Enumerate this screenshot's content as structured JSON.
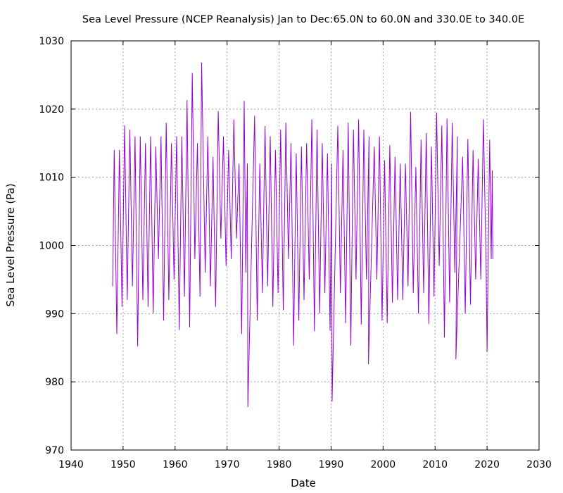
{
  "chart_data": {
    "type": "line",
    "title": "Sea Level Pressure (NCEP Reanalysis) Jan to Dec:65.0N to 60.0N and 330.0E to 340.0E",
    "xlabel": "Date",
    "ylabel": "Sea Level Pressure (Pa)",
    "xlim": [
      1940,
      2030
    ],
    "ylim": [
      970,
      1030
    ],
    "xticks": [
      1940,
      1950,
      1960,
      1970,
      1980,
      1990,
      2000,
      2010,
      2020,
      2030
    ],
    "yticks": [
      970,
      980,
      990,
      1000,
      1010,
      1020,
      1030
    ],
    "grid": true,
    "color": "#9400d3",
    "points": [
      [
        1948.0,
        994
      ],
      [
        1948.3,
        1014
      ],
      [
        1948.8,
        987
      ],
      [
        1949.3,
        1014
      ],
      [
        1949.8,
        991
      ],
      [
        1950.3,
        1017.6
      ],
      [
        1950.8,
        992
      ],
      [
        1951.3,
        1017
      ],
      [
        1951.8,
        994
      ],
      [
        1952.3,
        1016
      ],
      [
        1952.8,
        985.2
      ],
      [
        1953.3,
        1016
      ],
      [
        1953.8,
        992
      ],
      [
        1954.3,
        1015
      ],
      [
        1954.8,
        991
      ],
      [
        1955.3,
        1016
      ],
      [
        1955.8,
        990
      ],
      [
        1956.3,
        1014.5
      ],
      [
        1956.8,
        998
      ],
      [
        1957.3,
        1016
      ],
      [
        1957.8,
        989
      ],
      [
        1958.3,
        1018
      ],
      [
        1958.8,
        992
      ],
      [
        1959.3,
        1015
      ],
      [
        1959.8,
        995
      ],
      [
        1960.3,
        1016
      ],
      [
        1960.8,
        987.6
      ],
      [
        1961.3,
        1016
      ],
      [
        1961.8,
        992.5
      ],
      [
        1962.3,
        1021.3
      ],
      [
        1962.8,
        988
      ],
      [
        1963.3,
        1025.3
      ],
      [
        1963.8,
        998
      ],
      [
        1964.3,
        1015
      ],
      [
        1964.8,
        992.5
      ],
      [
        1965.1,
        1026.8
      ],
      [
        1965.8,
        996
      ],
      [
        1966.3,
        1016
      ],
      [
        1966.8,
        994
      ],
      [
        1967.3,
        1013
      ],
      [
        1967.8,
        991
      ],
      [
        1968.3,
        1019.7
      ],
      [
        1968.8,
        1001
      ],
      [
        1969.3,
        1016
      ],
      [
        1969.8,
        997
      ],
      [
        1970.3,
        1014
      ],
      [
        1970.8,
        998
      ],
      [
        1971.3,
        1018.5
      ],
      [
        1971.8,
        1001
      ],
      [
        1972.3,
        1012
      ],
      [
        1972.8,
        987
      ],
      [
        1973.3,
        1021.2
      ],
      [
        1973.6,
        996
      ],
      [
        1973.9,
        1012
      ],
      [
        1974.0,
        976.3
      ],
      [
        1975.3,
        1019
      ],
      [
        1975.8,
        989
      ],
      [
        1976.3,
        1012
      ],
      [
        1976.8,
        993
      ],
      [
        1977.3,
        1017.5
      ],
      [
        1977.8,
        994
      ],
      [
        1978.3,
        1016
      ],
      [
        1978.8,
        991
      ],
      [
        1979.3,
        1014
      ],
      [
        1979.8,
        993
      ],
      [
        1980.3,
        1017
      ],
      [
        1980.8,
        990.5
      ],
      [
        1981.3,
        1018
      ],
      [
        1981.8,
        998
      ],
      [
        1982.3,
        1015
      ],
      [
        1982.8,
        985.3
      ],
      [
        1983.3,
        1013.5
      ],
      [
        1983.8,
        989
      ],
      [
        1984.3,
        1014.5
      ],
      [
        1984.8,
        992
      ],
      [
        1985.3,
        1015
      ],
      [
        1985.8,
        995
      ],
      [
        1986.3,
        1018.5
      ],
      [
        1986.8,
        987.4
      ],
      [
        1987.3,
        1017
      ],
      [
        1987.8,
        990
      ],
      [
        1988.3,
        1015
      ],
      [
        1988.8,
        993
      ],
      [
        1989.3,
        1013.5
      ],
      [
        1989.8,
        987.5
      ],
      [
        1990.1,
        1012
      ],
      [
        1990.2,
        977.1
      ],
      [
        1991.3,
        1017.5
      ],
      [
        1991.8,
        993
      ],
      [
        1992.3,
        1014
      ],
      [
        1992.8,
        988.6
      ],
      [
        1993.3,
        1018
      ],
      [
        1993.8,
        985.3
      ],
      [
        1994.3,
        1017
      ],
      [
        1994.8,
        995
      ],
      [
        1995.3,
        1018.5
      ],
      [
        1995.8,
        988.4
      ],
      [
        1996.3,
        1017
      ],
      [
        1996.8,
        995
      ],
      [
        1997.3,
        1016
      ],
      [
        1997.2,
        982.6
      ],
      [
        1998.3,
        1014.5
      ],
      [
        1998.8,
        995
      ],
      [
        1999.3,
        1016
      ],
      [
        1999.8,
        989
      ],
      [
        2000.3,
        1012.5
      ],
      [
        2000.8,
        988.6
      ],
      [
        2001.3,
        1014.7
      ],
      [
        2001.8,
        991.6
      ],
      [
        2002.3,
        1013
      ],
      [
        2002.8,
        992
      ],
      [
        2003.3,
        1012
      ],
      [
        2003.8,
        992
      ],
      [
        2004.3,
        1012
      ],
      [
        2004.8,
        994
      ],
      [
        2005.3,
        1019.6
      ],
      [
        2005.8,
        993
      ],
      [
        2006.3,
        1011.5
      ],
      [
        2006.8,
        990
      ],
      [
        2007.3,
        1015.5
      ],
      [
        2007.8,
        993
      ],
      [
        2008.3,
        1016.5
      ],
      [
        2008.8,
        988.5
      ],
      [
        2009.3,
        1014.5
      ],
      [
        2009.8,
        992.5
      ],
      [
        2010.3,
        1019.5
      ],
      [
        2010.8,
        997
      ],
      [
        2011.3,
        1017.6
      ],
      [
        2011.8,
        986.5
      ],
      [
        2012.3,
        1018.6
      ],
      [
        2012.8,
        991.6
      ],
      [
        2013.3,
        1018
      ],
      [
        2013.8,
        996
      ],
      [
        2014.3,
        1016
      ],
      [
        2014.0,
        983.3
      ],
      [
        2015.3,
        1013
      ],
      [
        2015.8,
        990
      ],
      [
        2016.3,
        1015.6
      ],
      [
        2016.8,
        991.3
      ],
      [
        2017.3,
        1014
      ],
      [
        2017.8,
        995
      ],
      [
        2018.3,
        1012.7
      ],
      [
        2018.8,
        995
      ],
      [
        2019.3,
        1018.5
      ],
      [
        2019.8,
        998
      ],
      [
        2020.0,
        984.4
      ],
      [
        2020.5,
        1015.5
      ],
      [
        2020.8,
        998
      ],
      [
        2021.0,
        1011
      ],
      [
        2021.1,
        998
      ]
    ]
  }
}
